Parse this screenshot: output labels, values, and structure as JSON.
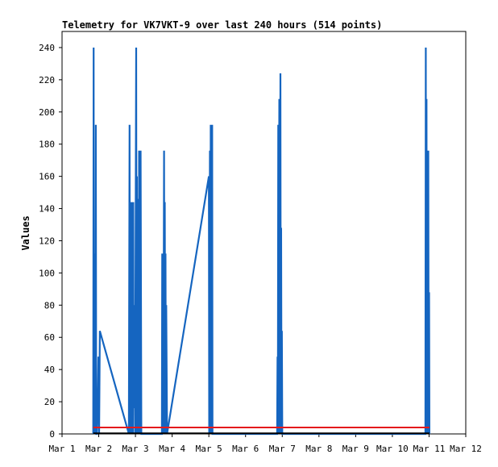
{
  "chart_data": {
    "type": "line",
    "title": "Telemetry for VK7VKT-9 over last 240 hours (514 points)",
    "xlabel": "",
    "ylabel": "Values",
    "x_tick_labels": [
      "Mar 1",
      "Mar 2",
      "Mar 3",
      "Mar 4",
      "Mar 5",
      "Mar 6",
      "Mar 7",
      "Mar 8",
      "Mar 9",
      "Mar 10",
      "Mar 11",
      "Mar 12"
    ],
    "xlim": [
      "Mar 1",
      "Mar 12"
    ],
    "ylim": [
      0,
      250
    ],
    "y_ticks": [
      0,
      20,
      40,
      60,
      80,
      100,
      120,
      140,
      160,
      180,
      200,
      220,
      240
    ],
    "grid": false,
    "colors": {
      "series_blue": "#1565c0",
      "series_red": "#e41a1c",
      "series_black": "#000000"
    },
    "series": [
      {
        "color": "#1565c0",
        "points": [
          [
            0.85,
            0
          ],
          [
            0.86,
            240
          ],
          [
            0.87,
            0
          ],
          [
            0.88,
            112
          ],
          [
            0.89,
            0
          ],
          [
            0.9,
            112
          ],
          [
            0.91,
            0
          ],
          [
            0.92,
            192
          ],
          [
            0.93,
            0
          ],
          [
            0.95,
            0
          ],
          [
            0.97,
            16
          ],
          [
            0.99,
            48
          ],
          [
            1.01,
            0
          ],
          [
            1.03,
            64
          ],
          [
            1.82,
            0
          ],
          [
            1.84,
            192
          ],
          [
            1.85,
            0
          ],
          [
            1.86,
            144
          ],
          [
            1.87,
            0
          ],
          [
            1.88,
            80
          ],
          [
            1.89,
            0
          ],
          [
            1.9,
            144
          ],
          [
            1.91,
            0
          ],
          [
            1.92,
            32
          ],
          [
            1.93,
            0
          ],
          [
            1.94,
            144
          ],
          [
            1.95,
            16
          ],
          [
            1.97,
            80
          ],
          [
            1.99,
            0
          ],
          [
            2.02,
            240
          ],
          [
            2.03,
            0
          ],
          [
            2.04,
            160
          ],
          [
            2.05,
            30
          ],
          [
            2.06,
            90
          ],
          [
            2.07,
            0
          ],
          [
            2.08,
            146
          ],
          [
            2.09,
            0
          ],
          [
            2.1,
            176
          ],
          [
            2.11,
            30
          ],
          [
            2.12,
            176
          ],
          [
            2.13,
            0
          ],
          [
            2.14,
            176
          ],
          [
            2.16,
            0
          ],
          [
            2.72,
            0
          ],
          [
            2.73,
            112
          ],
          [
            2.74,
            0
          ],
          [
            2.75,
            96
          ],
          [
            2.76,
            0
          ],
          [
            2.78,
            176
          ],
          [
            2.79,
            0
          ],
          [
            2.8,
            144
          ],
          [
            2.81,
            0
          ],
          [
            2.82,
            112
          ],
          [
            2.83,
            0
          ],
          [
            2.84,
            80
          ],
          [
            2.86,
            0
          ],
          [
            4.0,
            160
          ],
          [
            4.01,
            0
          ],
          [
            4.03,
            176
          ],
          [
            4.04,
            0
          ],
          [
            4.05,
            192
          ],
          [
            4.06,
            0
          ],
          [
            4.07,
            192
          ],
          [
            4.08,
            0
          ],
          [
            4.09,
            192
          ],
          [
            4.1,
            0
          ],
          [
            5.86,
            0
          ],
          [
            5.87,
            48
          ],
          [
            5.88,
            0
          ],
          [
            5.89,
            192
          ],
          [
            5.9,
            0
          ],
          [
            5.92,
            208
          ],
          [
            5.93,
            0
          ],
          [
            5.95,
            224
          ],
          [
            5.96,
            0
          ],
          [
            5.97,
            128
          ],
          [
            5.98,
            0
          ],
          [
            5.99,
            64
          ],
          [
            6.0,
            0
          ],
          [
            9.9,
            0
          ],
          [
            9.91,
            240
          ],
          [
            9.92,
            0
          ],
          [
            9.93,
            208
          ],
          [
            9.94,
            0
          ],
          [
            9.96,
            176
          ],
          [
            9.97,
            0
          ],
          [
            9.98,
            176
          ],
          [
            9.99,
            0
          ],
          [
            10.0,
            88
          ],
          [
            10.01,
            0
          ]
        ]
      },
      {
        "color": "#e41a1c",
        "points": [
          [
            0.85,
            4
          ],
          [
            10.01,
            4
          ]
        ]
      },
      {
        "color": "#000000",
        "points": [
          [
            0.85,
            0.4
          ],
          [
            10.01,
            0.4
          ]
        ]
      }
    ]
  }
}
